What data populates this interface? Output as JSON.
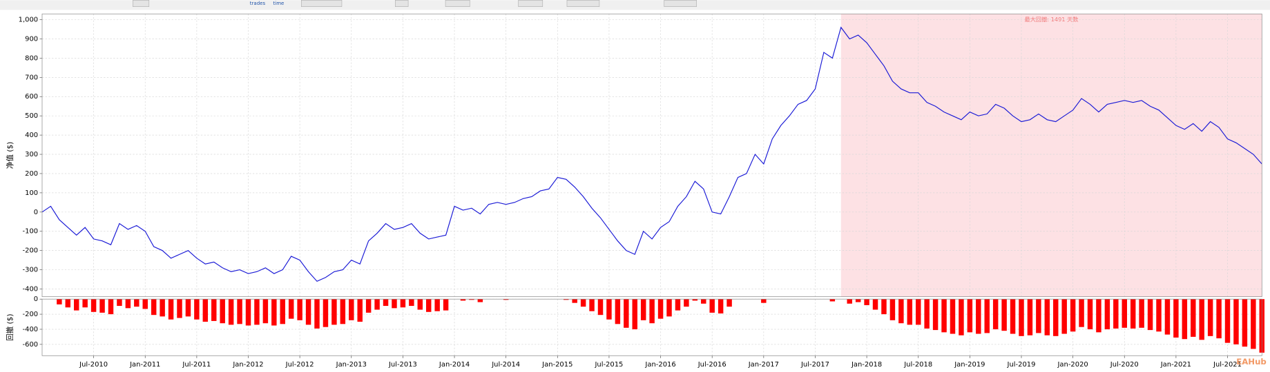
{
  "toolbar": {
    "buttons": [
      "trades",
      "time"
    ]
  },
  "watermark": "EAHub",
  "chart_data": [
    {
      "type": "line",
      "ylabel": "净值 ($)",
      "color": "#1a1ad6",
      "grid": true,
      "shade": {
        "start": "Oct-2017",
        "end": "Nov-2021",
        "color": "#fde1e4",
        "label": "最大回撤: 1491 天数"
      },
      "ylim": [
        -440,
        1030
      ],
      "yticks": [
        -400,
        -300,
        -200,
        -100,
        0,
        100,
        200,
        300,
        400,
        500,
        600,
        700,
        800,
        900,
        {
          "value": 1000,
          "label": "1,000"
        }
      ],
      "x": [
        "Jan-2010",
        "Feb-2010",
        "Mar-2010",
        "Apr-2010",
        "May-2010",
        "Jun-2010",
        "Jul-2010",
        "Aug-2010",
        "Sep-2010",
        "Oct-2010",
        "Nov-2010",
        "Dec-2010",
        "Jan-2011",
        "Feb-2011",
        "Mar-2011",
        "Apr-2011",
        "May-2011",
        "Jun-2011",
        "Jul-2011",
        "Aug-2011",
        "Sep-2011",
        "Oct-2011",
        "Nov-2011",
        "Dec-2011",
        "Jan-2012",
        "Feb-2012",
        "Mar-2012",
        "Apr-2012",
        "May-2012",
        "Jun-2012",
        "Jul-2012",
        "Aug-2012",
        "Sep-2012",
        "Oct-2012",
        "Nov-2012",
        "Dec-2012",
        "Jan-2013",
        "Feb-2013",
        "Mar-2013",
        "Apr-2013",
        "May-2013",
        "Jun-2013",
        "Jul-2013",
        "Aug-2013",
        "Sep-2013",
        "Oct-2013",
        "Nov-2013",
        "Dec-2013",
        "Jan-2014",
        "Feb-2014",
        "Mar-2014",
        "Apr-2014",
        "May-2014",
        "Jun-2014",
        "Jul-2014",
        "Aug-2014",
        "Sep-2014",
        "Oct-2014",
        "Nov-2014",
        "Dec-2014",
        "Jan-2015",
        "Feb-2015",
        "Mar-2015",
        "Apr-2015",
        "May-2015",
        "Jun-2015",
        "Jul-2015",
        "Aug-2015",
        "Sep-2015",
        "Oct-2015",
        "Nov-2015",
        "Dec-2015",
        "Jan-2016",
        "Feb-2016",
        "Mar-2016",
        "Apr-2016",
        "May-2016",
        "Jun-2016",
        "Jul-2016",
        "Aug-2016",
        "Sep-2016",
        "Oct-2016",
        "Nov-2016",
        "Dec-2016",
        "Jan-2017",
        "Feb-2017",
        "Mar-2017",
        "Apr-2017",
        "May-2017",
        "Jun-2017",
        "Jul-2017",
        "Aug-2017",
        "Sep-2017",
        "Oct-2017",
        "Nov-2017",
        "Dec-2017",
        "Jan-2018",
        "Feb-2018",
        "Mar-2018",
        "Apr-2018",
        "May-2018",
        "Jun-2018",
        "Jul-2018",
        "Aug-2018",
        "Sep-2018",
        "Oct-2018",
        "Nov-2018",
        "Dec-2018",
        "Jan-2019",
        "Feb-2019",
        "Mar-2019",
        "Apr-2019",
        "May-2019",
        "Jun-2019",
        "Jul-2019",
        "Aug-2019",
        "Sep-2019",
        "Oct-2019",
        "Nov-2019",
        "Dec-2019",
        "Jan-2020",
        "Feb-2020",
        "Mar-2020",
        "Apr-2020",
        "May-2020",
        "Jun-2020",
        "Jul-2020",
        "Aug-2020",
        "Sep-2020",
        "Oct-2020",
        "Nov-2020",
        "Dec-2020",
        "Jan-2021",
        "Feb-2021",
        "Mar-2021",
        "Apr-2021",
        "May-2021",
        "Jun-2021",
        "Jul-2021",
        "Aug-2021",
        "Sep-2021",
        "Oct-2021",
        "Nov-2021"
      ],
      "xticks": [
        "Jul-2010",
        "Jan-2011",
        "Jul-2011",
        "Jan-2012",
        "Jul-2012",
        "Jan-2013",
        "Jul-2013",
        "Jan-2014",
        "Jul-2014",
        "Jan-2015",
        "Jul-2015",
        "Jan-2016",
        "Jul-2016",
        "Jan-2017",
        "Jul-2017",
        "Jan-2018",
        "Jul-2018",
        "Jan-2019",
        "Jul-2019",
        "Jan-2020",
        "Jul-2020",
        "Jan-2021",
        "Jul-2021"
      ],
      "values": [
        0,
        30,
        -40,
        -80,
        -120,
        -80,
        -140,
        -150,
        -170,
        -60,
        -90,
        -70,
        -100,
        -180,
        -200,
        -240,
        -220,
        -200,
        -240,
        -270,
        -260,
        -290,
        -310,
        -300,
        -320,
        -310,
        -290,
        -320,
        -300,
        -230,
        -250,
        -310,
        -360,
        -340,
        -310,
        -300,
        -250,
        -270,
        -150,
        -110,
        -60,
        -90,
        -80,
        -60,
        -110,
        -140,
        -130,
        -120,
        30,
        10,
        20,
        -10,
        40,
        50,
        40,
        50,
        70,
        80,
        110,
        120,
        180,
        170,
        130,
        80,
        20,
        -30,
        -90,
        -150,
        -200,
        -220,
        -100,
        -140,
        -80,
        -50,
        30,
        80,
        160,
        120,
        0,
        -10,
        80,
        180,
        200,
        300,
        250,
        380,
        450,
        500,
        560,
        580,
        640,
        830,
        800,
        960,
        900,
        920,
        880,
        820,
        760,
        680,
        640,
        620,
        620,
        570,
        550,
        520,
        500,
        480,
        520,
        500,
        510,
        560,
        540,
        500,
        470,
        480,
        510,
        480,
        470,
        500,
        530,
        590,
        560,
        520,
        560,
        570,
        580,
        570,
        580,
        550,
        530,
        490,
        450,
        430,
        460,
        420,
        470,
        440,
        380,
        360,
        330,
        300,
        250
      ]
    },
    {
      "type": "bar",
      "ylabel": "回撤 ($)",
      "color": "#ff0000",
      "grid": true,
      "ylim": [
        -750,
        0
      ],
      "yticks": [
        -600,
        -400,
        -200,
        0
      ],
      "x": [
        "Jan-2010",
        "Feb-2010",
        "Mar-2010",
        "Apr-2010",
        "May-2010",
        "Jun-2010",
        "Jul-2010",
        "Aug-2010",
        "Sep-2010",
        "Oct-2010",
        "Nov-2010",
        "Dec-2010",
        "Jan-2011",
        "Feb-2011",
        "Mar-2011",
        "Apr-2011",
        "May-2011",
        "Jun-2011",
        "Jul-2011",
        "Aug-2011",
        "Sep-2011",
        "Oct-2011",
        "Nov-2011",
        "Dec-2011",
        "Jan-2012",
        "Feb-2012",
        "Mar-2012",
        "Apr-2012",
        "May-2012",
        "Jun-2012",
        "Jul-2012",
        "Aug-2012",
        "Sep-2012",
        "Oct-2012",
        "Nov-2012",
        "Dec-2012",
        "Jan-2013",
        "Feb-2013",
        "Mar-2013",
        "Apr-2013",
        "May-2013",
        "Jun-2013",
        "Jul-2013",
        "Aug-2013",
        "Sep-2013",
        "Oct-2013",
        "Nov-2013",
        "Dec-2013",
        "Jan-2014",
        "Feb-2014",
        "Mar-2014",
        "Apr-2014",
        "May-2014",
        "Jun-2014",
        "Jul-2014",
        "Aug-2014",
        "Sep-2014",
        "Oct-2014",
        "Nov-2014",
        "Dec-2014",
        "Jan-2015",
        "Feb-2015",
        "Mar-2015",
        "Apr-2015",
        "May-2015",
        "Jun-2015",
        "Jul-2015",
        "Aug-2015",
        "Sep-2015",
        "Oct-2015",
        "Nov-2015",
        "Dec-2015",
        "Jan-2016",
        "Feb-2016",
        "Mar-2016",
        "Apr-2016",
        "May-2016",
        "Jun-2016",
        "Jul-2016",
        "Aug-2016",
        "Sep-2016",
        "Oct-2016",
        "Nov-2016",
        "Dec-2016",
        "Jan-2017",
        "Feb-2017",
        "Mar-2017",
        "Apr-2017",
        "May-2017",
        "Jun-2017",
        "Jul-2017",
        "Aug-2017",
        "Sep-2017",
        "Oct-2017",
        "Nov-2017",
        "Dec-2017",
        "Jan-2018",
        "Feb-2018",
        "Mar-2018",
        "Apr-2018",
        "May-2018",
        "Jun-2018",
        "Jul-2018",
        "Aug-2018",
        "Sep-2018",
        "Oct-2018",
        "Nov-2018",
        "Dec-2018",
        "Jan-2019",
        "Feb-2019",
        "Mar-2019",
        "Apr-2019",
        "May-2019",
        "Jun-2019",
        "Jul-2019",
        "Aug-2019",
        "Sep-2019",
        "Oct-2019",
        "Nov-2019",
        "Dec-2019",
        "Jan-2020",
        "Feb-2020",
        "Mar-2020",
        "Apr-2020",
        "May-2020",
        "Jun-2020",
        "Jul-2020",
        "Aug-2020",
        "Sep-2020",
        "Oct-2020",
        "Nov-2020",
        "Dec-2020",
        "Jan-2021",
        "Feb-2021",
        "Mar-2021",
        "Apr-2021",
        "May-2021",
        "Jun-2021",
        "Jul-2021",
        "Aug-2021",
        "Sep-2021",
        "Oct-2021",
        "Nov-2021"
      ],
      "xticks": [
        "Jul-2010",
        "Jan-2011",
        "Jul-2011",
        "Jan-2012",
        "Jul-2012",
        "Jan-2013",
        "Jul-2013",
        "Jan-2014",
        "Jul-2014",
        "Jan-2015",
        "Jul-2015",
        "Jan-2016",
        "Jul-2016",
        "Jan-2017",
        "Jul-2017",
        "Jan-2018",
        "Jul-2018",
        "Jan-2019",
        "Jul-2019",
        "Jan-2020",
        "Jul-2020",
        "Jan-2021",
        "Jul-2021"
      ],
      "values": [
        0,
        0,
        -70,
        -110,
        -150,
        -110,
        -170,
        -180,
        -200,
        -90,
        -120,
        -100,
        -130,
        -210,
        -230,
        -270,
        -250,
        -230,
        -270,
        -300,
        -290,
        -320,
        -340,
        -330,
        -350,
        -340,
        -320,
        -350,
        -330,
        -260,
        -280,
        -340,
        -390,
        -370,
        -340,
        -330,
        -280,
        -300,
        -180,
        -140,
        -90,
        -120,
        -110,
        -90,
        -140,
        -170,
        -160,
        -150,
        0,
        -20,
        -10,
        -40,
        0,
        0,
        -10,
        0,
        0,
        0,
        0,
        0,
        0,
        -10,
        -50,
        -100,
        -160,
        -210,
        -270,
        -330,
        -380,
        -400,
        -280,
        -320,
        -260,
        -230,
        -150,
        -100,
        -20,
        -60,
        -180,
        -190,
        -100,
        0,
        0,
        0,
        -50,
        0,
        0,
        0,
        0,
        0,
        0,
        0,
        -30,
        0,
        -60,
        -40,
        -80,
        -140,
        -200,
        -280,
        -320,
        -340,
        -340,
        -390,
        -410,
        -440,
        -460,
        -480,
        -440,
        -460,
        -450,
        -400,
        -420,
        -460,
        -490,
        -480,
        -450,
        -480,
        -490,
        -460,
        -430,
        -370,
        -400,
        -440,
        -400,
        -390,
        -380,
        -390,
        -380,
        -410,
        -430,
        -470,
        -510,
        -530,
        -500,
        -540,
        -490,
        -520,
        -580,
        -600,
        -630,
        -660,
        -710
      ]
    }
  ]
}
